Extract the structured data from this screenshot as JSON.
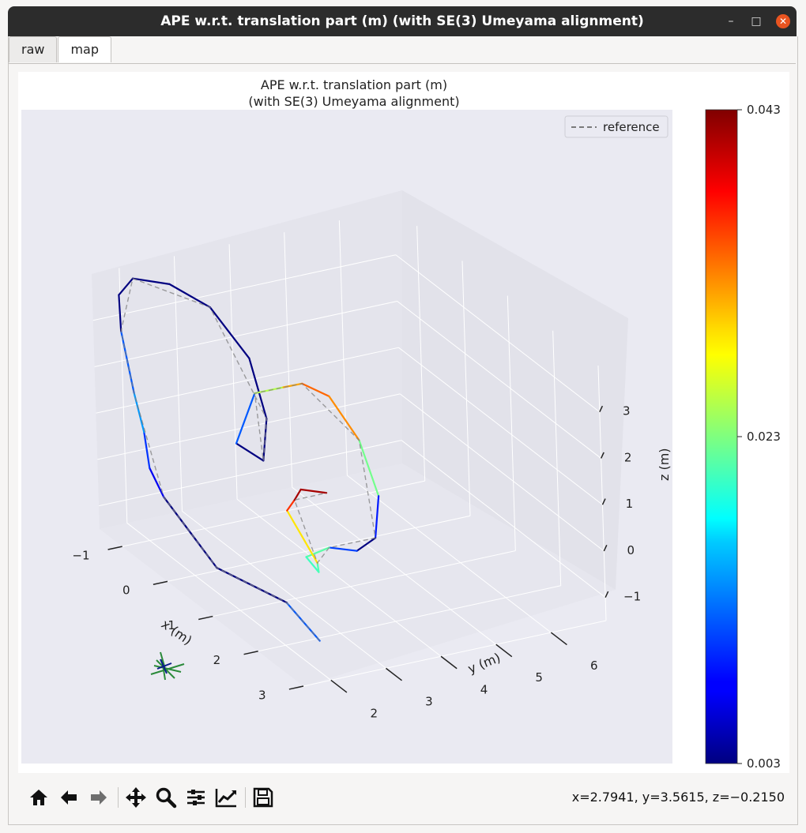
{
  "window": {
    "title": "APE w.r.t. translation part (m) (with SE(3) Umeyama alignment)",
    "controls": [
      "minimize-icon",
      "maximize-icon",
      "close-icon"
    ]
  },
  "tabs": [
    {
      "label": "raw",
      "active": false
    },
    {
      "label": "map",
      "active": true
    }
  ],
  "toolbar": {
    "tools": [
      "home-icon",
      "back-arrow-icon",
      "forward-arrow-icon",
      "pan-icon",
      "zoom-icon",
      "configure-subplots-icon",
      "edit-axis-icon",
      "save-icon"
    ],
    "coords": "x=2.7941, y=3.5615, z=−0.2150"
  },
  "chart_data": {
    "type": "line",
    "title": "APE w.r.t. translation part (m)",
    "subtitle": "(with SE(3) Umeyama alignment)",
    "projection": "3d",
    "legend": {
      "label": "reference",
      "style": "dashed",
      "color": "#808080",
      "placement": "top-right"
    },
    "xlabel": "x (m)",
    "ylabel": "y (m)",
    "zlabel": "z (m)",
    "x_ticks": [
      "−1",
      "0",
      "1",
      "2",
      "3"
    ],
    "y_ticks": [
      "2",
      "3",
      "4",
      "5",
      "6"
    ],
    "z_ticks": [
      "−1",
      "0",
      "1",
      "2",
      "3"
    ],
    "colorbar": {
      "colormap": "jet",
      "min": 0.003,
      "max": 0.043,
      "tick_labels": [
        "0.043",
        "0.023",
        "0.003"
      ]
    },
    "grid": true,
    "background_color": "#eaeaf2",
    "series": [
      {
        "role": "estimate",
        "colored_by": "APE",
        "points": [
          {
            "x": 2.9,
            "y": 1.9,
            "z": -0.7,
            "ape": 0.02
          },
          {
            "x": 2.3,
            "y": 1.8,
            "z": -0.3,
            "ape": 0.003
          },
          {
            "x": 1.5,
            "y": 1.2,
            "z": 0.0,
            "ape": 0.003
          },
          {
            "x": 0.6,
            "y": 1.0,
            "z": 0.9,
            "ape": 0.003
          },
          {
            "x": 0.3,
            "y": 1.0,
            "z": 1.3,
            "ape": 0.012
          },
          {
            "x": 0.2,
            "y": 1.0,
            "z": 2.0,
            "ape": 0.008
          },
          {
            "x": 0.0,
            "y": 1.0,
            "z": 2.7,
            "ape": 0.02
          },
          {
            "x": -0.5,
            "y": 1.2,
            "z": 3.6,
            "ape": 0.003
          },
          {
            "x": -0.9,
            "y": 1.5,
            "z": 4.0,
            "ape": 0.003
          },
          {
            "x": -1.2,
            "y": 2.0,
            "z": 4.0,
            "ape": 0.003
          },
          {
            "x": -1.0,
            "y": 2.5,
            "z": 3.9,
            "ape": 0.003
          },
          {
            "x": -0.6,
            "y": 2.9,
            "z": 3.6,
            "ape": 0.003
          },
          {
            "x": 0.0,
            "y": 3.1,
            "z": 2.9,
            "ape": 0.003
          },
          {
            "x": 0.6,
            "y": 2.9,
            "z": 2.1,
            "ape": 0.003
          },
          {
            "x": 1.0,
            "y": 2.5,
            "z": 1.6,
            "ape": 0.003
          },
          {
            "x": 0.9,
            "y": 2.1,
            "z": 2.0,
            "ape": 0.003
          },
          {
            "x": 0.6,
            "y": 2.7,
            "z": 2.7,
            "ape": 0.02
          },
          {
            "x": 0.5,
            "y": 3.3,
            "z": 2.6,
            "ape": 0.03
          },
          {
            "x": 0.3,
            "y": 3.8,
            "z": 2.4,
            "ape": 0.033
          },
          {
            "x": 0.4,
            "y": 4.2,
            "z": 2.1,
            "ape": 0.035
          },
          {
            "x": 0.8,
            "y": 4.4,
            "z": 1.4,
            "ape": 0.03
          },
          {
            "x": 1.2,
            "y": 4.4,
            "z": 0.5,
            "ape": 0.015
          },
          {
            "x": 1.6,
            "y": 4.0,
            "z": 0.0,
            "ape": 0.003
          },
          {
            "x": 1.8,
            "y": 3.5,
            "z": 0.0,
            "ape": 0.003
          },
          {
            "x": 1.8,
            "y": 3.0,
            "z": 0.2,
            "ape": 0.018
          },
          {
            "x": 1.9,
            "y": 2.5,
            "z": 0.2,
            "ape": 0.025
          },
          {
            "x": 2.3,
            "y": 2.4,
            "z": 0.2,
            "ape": 0.016
          },
          {
            "x": 2.4,
            "y": 2.3,
            "z": 0.5,
            "ape": 0.026
          },
          {
            "x": 1.5,
            "y": 2.5,
            "z": 0.9,
            "ape": 0.032
          },
          {
            "x": 1.3,
            "y": 2.8,
            "z": 0.9,
            "ape": 0.04
          },
          {
            "x": 1.2,
            "y": 3.0,
            "z": 1.0,
            "ape": 0.043
          },
          {
            "x": 1.4,
            "y": 3.3,
            "z": 1.0,
            "ape": 0.04
          }
        ]
      },
      {
        "role": "reference",
        "style": "dashed",
        "points": [
          {
            "x": 2.9,
            "y": 1.9,
            "z": -0.7
          },
          {
            "x": 2.3,
            "y": 1.8,
            "z": -0.3
          },
          {
            "x": 1.5,
            "y": 1.2,
            "z": 0.0
          },
          {
            "x": 0.6,
            "y": 1.0,
            "z": 0.9
          },
          {
            "x": 0.0,
            "y": 1.0,
            "z": 2.7
          },
          {
            "x": -0.5,
            "y": 1.2,
            "z": 3.6
          },
          {
            "x": -1.2,
            "y": 2.0,
            "z": 4.0
          },
          {
            "x": -0.6,
            "y": 2.9,
            "z": 3.6
          },
          {
            "x": 0.6,
            "y": 2.9,
            "z": 2.1
          },
          {
            "x": 1.0,
            "y": 2.5,
            "z": 1.6
          },
          {
            "x": 0.6,
            "y": 2.7,
            "z": 2.7
          },
          {
            "x": 0.3,
            "y": 3.8,
            "z": 2.4
          },
          {
            "x": 0.8,
            "y": 4.4,
            "z": 1.4
          },
          {
            "x": 1.6,
            "y": 4.0,
            "z": 0.0
          },
          {
            "x": 1.8,
            "y": 3.0,
            "z": 0.2
          },
          {
            "x": 2.4,
            "y": 2.3,
            "z": 0.5
          },
          {
            "x": 1.3,
            "y": 2.8,
            "z": 0.9
          },
          {
            "x": 1.4,
            "y": 3.3,
            "z": 1.0
          }
        ]
      }
    ]
  }
}
